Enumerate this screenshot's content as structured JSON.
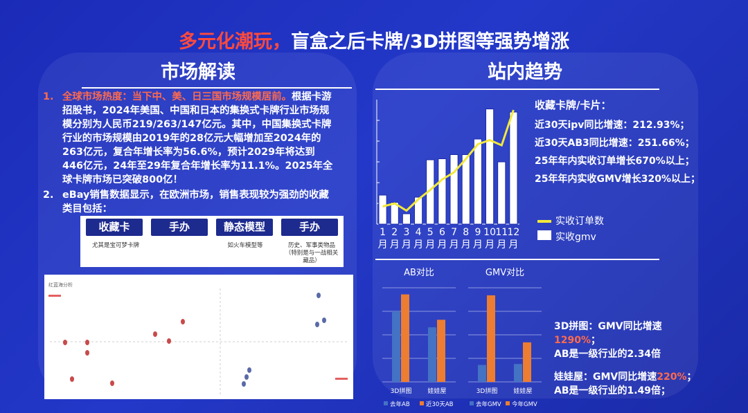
{
  "title": {
    "highlight": "多元化潮玩，",
    "rest": "盲盒之后卡牌/3D拼图等强势增涨"
  },
  "left_title": "市场解读",
  "right_title": "站内趋势",
  "left": {
    "item1_num": "1.",
    "item1_head": "全球市场热度：当下中、美、日三国市场规模居前。",
    "item1_body": "根据卡游招股书，2024年美国、中国和日本的集换式卡牌行业市场规模分别为人民币219/263/147亿元。其中，中国集换式卡牌行业的市场规模由2019年的28亿元大幅增加至2024年的263亿元，复合年增长率为56.6%，预计2029年将达到446亿元，24年至29年复合年增长率为11.1%。2025年全球卡牌市场已突破800亿！",
    "item2_num": "2.",
    "item2_body": "eBay销售数据显示，在欧洲市场，销售表现较为强劲的收藏类目包括：",
    "categories": [
      {
        "label": "收藏卡",
        "note": "尤其是宝可梦卡牌"
      },
      {
        "label": "手办",
        "note": ""
      },
      {
        "label": "静态模型",
        "note": "如火车模型等"
      },
      {
        "label": "手办",
        "note": "历史、军事类物品（特别是与一战相关藏品）"
      }
    ],
    "scatter_title": "红蓝海分析"
  },
  "right": {
    "stats_title": "收藏卡牌/卡片：",
    "stats": [
      "近30天ipv同比增速：212.93%；",
      "近30天AB3同比增速：251.66%；",
      "25年年内实收订单增长670%以上；",
      "25年年内实收GMV增长320%以上；"
    ],
    "note1_a": "3D拼图：GMV同比增速",
    "note1_b": "1290%",
    "note1_c": "；",
    "note1_d": "AB是一级行业的2.34倍",
    "note2_a": "娃娃屋：GMV同比增速",
    "note2_b": "220%",
    "note2_c": "；",
    "note2_d": "AB是一级行业的1.49倍；"
  },
  "chart_data": [
    {
      "type": "bar",
      "categories": [
        "1月",
        "2月",
        "3月",
        "4月",
        "5月",
        "6月",
        "7月",
        "8月",
        "9月",
        "10月",
        "11月",
        "12月"
      ],
      "series": [
        {
          "name": "实收gmv",
          "type": "bar",
          "values": [
            2.8,
            2.1,
            1.0,
            2.6,
            6.2,
            6.3,
            6.7,
            6.7,
            8.2,
            11.1,
            6.0,
            10.8
          ]
        },
        {
          "name": "实收订单数",
          "type": "line",
          "values": [
            1.7,
            2.0,
            1.3,
            2.4,
            3.3,
            4.3,
            5.0,
            6.3,
            7.7,
            8.1,
            7.6,
            11.0
          ]
        }
      ],
      "legend": "bottom",
      "colors": {
        "bar": "#ffffff",
        "line": "#f2e83a"
      }
    },
    {
      "type": "bar",
      "title": "AB对比",
      "categories": [
        "3D拼图",
        "娃娃屋"
      ],
      "series": [
        {
          "name": "去年AB",
          "values": [
            75,
            58
          ]
        },
        {
          "name": "近30天AB",
          "values": [
            93,
            66
          ]
        }
      ],
      "ylim": [
        0,
        100
      ],
      "colors": {
        "s1": "#4472c4",
        "s2": "#ed7d31"
      }
    },
    {
      "type": "bar",
      "title": "GMV对比",
      "categories": [
        "3D拼图",
        "娃娃屋"
      ],
      "series": [
        {
          "name": "去年GMV",
          "values": [
            18,
            19
          ]
        },
        {
          "name": "今年GMV",
          "values": [
            92,
            42
          ]
        }
      ],
      "ylim": [
        0,
        100
      ],
      "colors": {
        "s1": "#4472c4",
        "s2": "#ed7d31"
      }
    }
  ]
}
